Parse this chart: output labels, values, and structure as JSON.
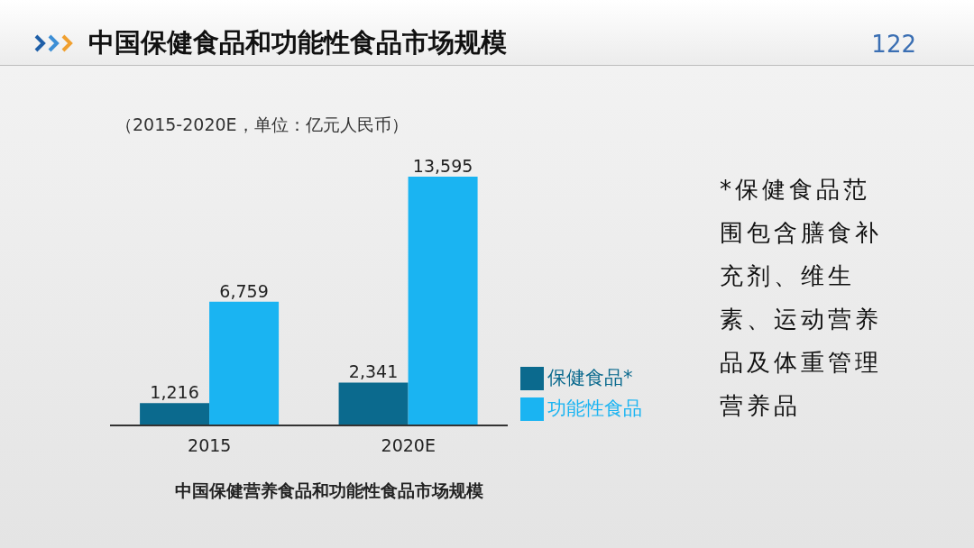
{
  "chart_data": {
    "type": "bar",
    "title": "中国保健食品和功能性食品市场规模",
    "subtitle": "（2015-2020E，单位：亿元人民币）",
    "categories": [
      "2015",
      "2020E"
    ],
    "series": [
      {
        "name": "保健食品*",
        "color": "#0b6a8e",
        "values": [
          1216,
          2341
        ],
        "value_labels": [
          "1,216",
          "2,341"
        ]
      },
      {
        "name": "功能性食品",
        "color": "#1ab4f2",
        "values": [
          6759,
          13595
        ],
        "value_labels": [
          "6,759",
          "13,595"
        ]
      }
    ],
    "legend": "right",
    "grid": false,
    "annotations": [
      "122",
      "中国保健营养食品和功能性食品市场规模",
      "*保健食品范围包含膳食补充剂、维生素、运动营养品及体重管理营养品"
    ]
  }
}
